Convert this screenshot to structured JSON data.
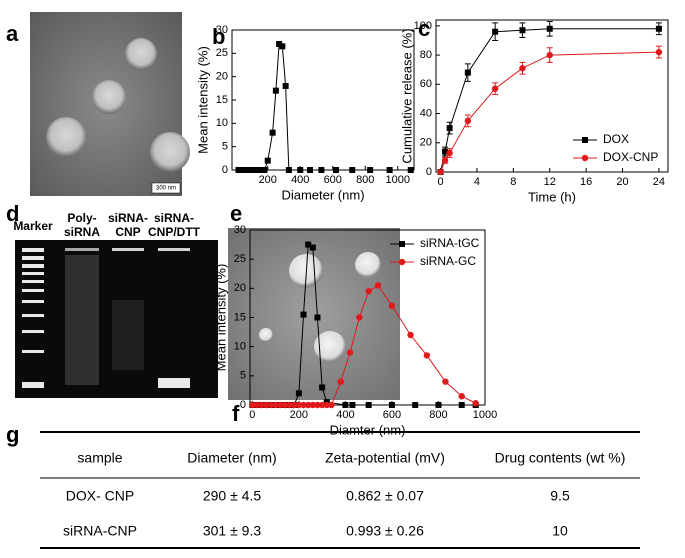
{
  "panels": {
    "a": "a",
    "d": "d",
    "e": "e",
    "g": "g"
  },
  "scale_bar": "300 nm",
  "gel_lanes": [
    [
      "Marker"
    ],
    [
      "Poly-",
      "siRNA"
    ],
    [
      "siRNA-",
      "CNP"
    ],
    [
      "siRNA-",
      "CNP/DTT"
    ]
  ],
  "table": {
    "header": [
      "sample",
      "Diameter (nm)",
      "Zeta-potential (mV)",
      "Drug contents (wt %)"
    ],
    "rows": [
      [
        "DOX- CNP",
        "290 ± 4.5",
        "0.862  ± 0.07",
        "9.5"
      ],
      [
        "siRNA-CNP",
        "301 ± 9.3",
        "0.993  ± 0.26",
        "10"
      ]
    ]
  },
  "chart_data": [
    {
      "type": "line",
      "panel": "b",
      "xlabel": "Diameter (nm)",
      "ylabel": "Mean intensity (%)",
      "xlim": [
        -20,
        1100
      ],
      "xticks": [
        200,
        400,
        600,
        800,
        1000
      ],
      "ylim": [
        0,
        30
      ],
      "yticks": [
        0,
        5,
        10,
        15,
        20,
        25,
        30
      ],
      "series": [
        {
          "name": null,
          "color": "#000000",
          "marker": "square",
          "x": [
            20,
            40,
            60,
            80,
            100,
            120,
            140,
            160,
            180,
            200,
            230,
            250,
            270,
            290,
            310,
            330,
            400,
            460,
            530,
            620,
            720,
            830,
            950,
            1080
          ],
          "values": [
            0,
            0,
            0,
            0,
            0,
            0,
            0,
            0,
            0,
            2,
            8,
            17,
            27,
            26.5,
            18,
            0,
            0,
            0,
            0,
            0,
            0,
            0,
            0,
            0
          ]
        }
      ]
    },
    {
      "type": "line",
      "panel": "c",
      "xlabel": "Time (h)",
      "ylabel": "Cumulative release (%)",
      "xlim": [
        -0.5,
        25
      ],
      "xticks": [
        0,
        4,
        8,
        12,
        16,
        20,
        24
      ],
      "ylim": [
        0,
        104
      ],
      "yticks": [
        0,
        20,
        40,
        60,
        80,
        100
      ],
      "legend": "lower right",
      "series": [
        {
          "name": "DOX",
          "color": "#000000",
          "marker": "square",
          "x": [
            0,
            0.5,
            1,
            3,
            6,
            9,
            12,
            24
          ],
          "values": [
            0,
            14,
            30,
            68,
            96,
            97,
            98,
            98
          ],
          "errors": [
            0,
            3,
            4,
            6,
            6,
            5,
            5,
            4
          ]
        },
        {
          "name": "DOX-CNP",
          "color": "#e0191d",
          "marker": "circle",
          "x": [
            0,
            0.5,
            1,
            3,
            6,
            9,
            12,
            24
          ],
          "values": [
            0,
            8,
            13,
            35,
            57,
            71,
            80,
            82
          ],
          "errors": [
            0,
            2,
            3,
            4,
            4,
            4,
            5,
            4
          ]
        }
      ]
    },
    {
      "type": "line",
      "panel": "f",
      "xlabel": "Diamter (nm)",
      "ylabel": "Mean intensity (%)",
      "xlim": [
        -10,
        1000
      ],
      "xticks": [
        0,
        200,
        400,
        600,
        800,
        1000
      ],
      "ylim": [
        0,
        30
      ],
      "yticks": [
        0,
        5,
        10,
        15,
        20,
        25,
        30
      ],
      "legend": "upper right",
      "series": [
        {
          "name": "siRNA-tGC",
          "color": "#000000",
          "marker": "square",
          "x": [
            0,
            20,
            40,
            60,
            80,
            100,
            120,
            140,
            160,
            180,
            200,
            220,
            240,
            260,
            280,
            300,
            320,
            400,
            430,
            500,
            600,
            700,
            800,
            900,
            960
          ],
          "values": [
            0,
            0,
            0,
            0,
            0,
            0,
            0,
            0,
            0,
            0,
            2,
            15.5,
            27.5,
            27,
            15,
            3,
            0.5,
            0,
            0,
            0,
            0,
            0,
            0,
            0,
            0
          ]
        },
        {
          "name": "siRNA-GC",
          "color": "#e0191d",
          "marker": "circle",
          "x": [
            0,
            20,
            40,
            60,
            80,
            100,
            120,
            140,
            160,
            180,
            200,
            220,
            240,
            260,
            280,
            300,
            320,
            340,
            380,
            420,
            460,
            500,
            540,
            600,
            680,
            750,
            830,
            900,
            960
          ],
          "values": [
            0,
            0,
            0,
            0,
            0,
            0,
            0,
            0,
            0,
            0,
            0,
            0,
            0,
            0,
            0,
            0,
            0,
            0,
            4,
            9,
            15,
            19.5,
            20.5,
            17,
            12,
            8.5,
            4,
            1.5,
            0.3
          ]
        }
      ]
    }
  ]
}
